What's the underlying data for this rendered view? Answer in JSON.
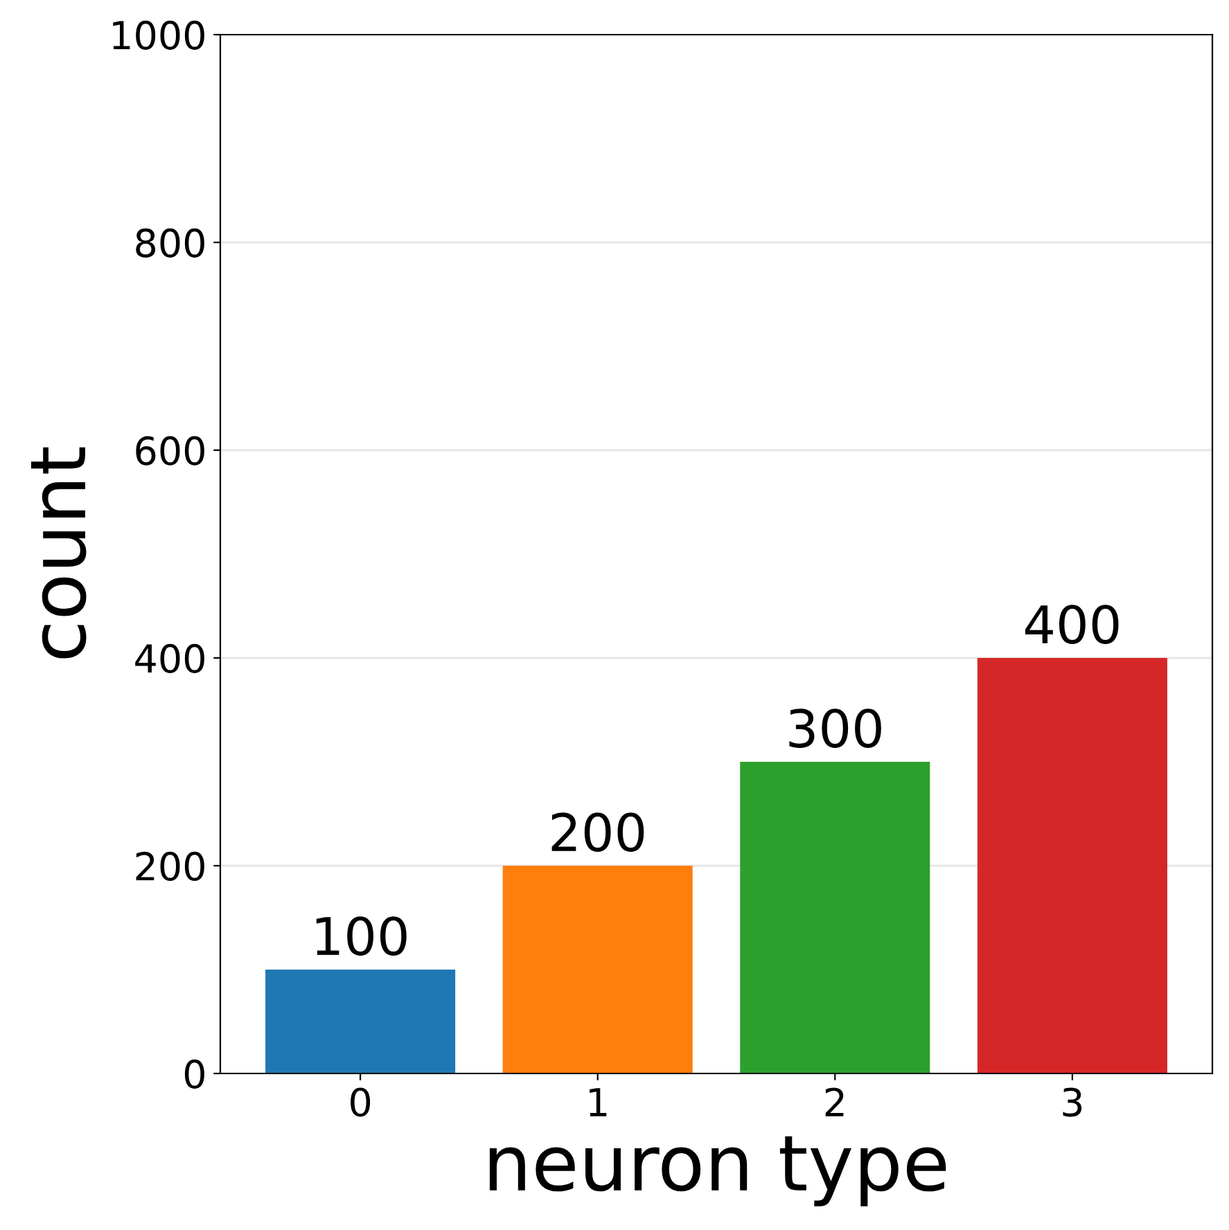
{
  "chart_data": {
    "type": "bar",
    "xlabel": "neuron type",
    "ylabel": "count",
    "categories": [
      "0",
      "1",
      "2",
      "3"
    ],
    "values": [
      100,
      200,
      300,
      400
    ],
    "colors": [
      "#1f77b4",
      "#ff7f0e",
      "#2ca02c",
      "#d62728"
    ],
    "ylim": [
      0,
      1000
    ],
    "yticks": [
      0,
      200,
      400,
      600,
      800,
      1000
    ],
    "grid": "y",
    "data_labels": true
  }
}
